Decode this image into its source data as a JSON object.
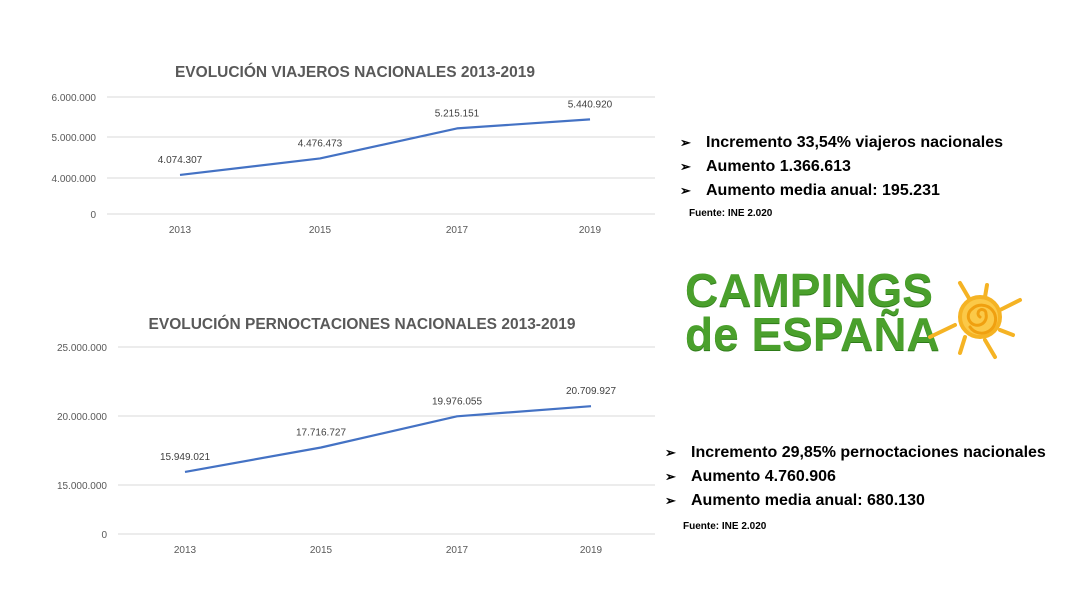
{
  "chart_data": [
    {
      "type": "line",
      "title": "EVOLUCIÓN VIAJEROS NACIONALES 2013-2019",
      "categories": [
        "2013",
        "2015",
        "2017",
        "2019"
      ],
      "values": [
        4074307,
        4476473,
        5215151,
        5440920
      ],
      "data_labels": [
        "4.074.307",
        "4.476.473",
        "5.215.151",
        "5.440.920"
      ],
      "y_ticks": [
        0,
        4000000,
        5000000,
        6000000
      ],
      "y_tick_labels": [
        "0",
        "4.000.000",
        "5.000.000",
        "6.000.000"
      ],
      "xlabel": "",
      "ylabel": "",
      "grid": true,
      "color": "#4472c4"
    },
    {
      "type": "line",
      "title": "EVOLUCIÓN PERNOCTACIONES NACIONALES 2013-2019",
      "categories": [
        "2013",
        "2015",
        "2017",
        "2019"
      ],
      "values": [
        15949021,
        17716727,
        19976055,
        20709927
      ],
      "data_labels": [
        "15.949.021",
        "17.716.727",
        "19.976.055",
        "20.709.927"
      ],
      "y_ticks": [
        0,
        15000000,
        20000000,
        25000000
      ],
      "y_tick_labels": [
        "0",
        "15.000.000",
        "20.000.000",
        "25.000.000"
      ],
      "xlabel": "",
      "ylabel": "",
      "grid": true,
      "color": "#4472c4"
    }
  ],
  "bullets_top": [
    "Incremento 33,54% viajeros nacionales",
    "Aumento 1.366.613",
    "Aumento media anual:  195.231"
  ],
  "source_top": "Fuente: INE 2.020",
  "bullets_bottom": [
    "Incremento 29,85% pernoctaciones nacionales",
    "Aumento 4.760.906",
    "Aumento media anual:  680.130"
  ],
  "source_bottom": "Fuente: INE 2.020",
  "bullet_symbol": "➢",
  "logo": {
    "line1": "CAMPINGS",
    "line2": "de ESPAÑA",
    "green": "#4aa02c",
    "sun": "#f5b324"
  }
}
